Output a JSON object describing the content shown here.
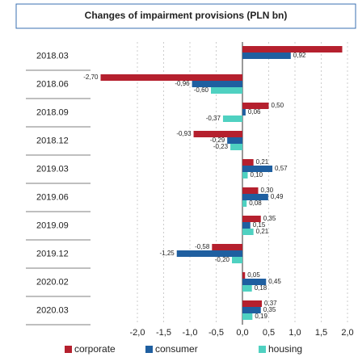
{
  "chart_data": {
    "type": "hbar",
    "title": "Changes of impairment provisions (PLN bn)",
    "categories": [
      "2018.03",
      "2018.06",
      "2018.09",
      "2018.12",
      "2019.03",
      "2019.06",
      "2019.09",
      "2019.12",
      "2020.02",
      "2020.03"
    ],
    "series": [
      {
        "name": "corporate",
        "color": "#b5202e",
        "values": [
          1.9,
          -2.7,
          0.5,
          -0.93,
          0.21,
          0.3,
          0.35,
          -0.58,
          0.05,
          0.37
        ],
        "value_labels": [
          null,
          "-2,70",
          "0,50",
          "-0,93",
          "0,21",
          "0,30",
          "0,35",
          "-0,58",
          "0,05",
          "0,37"
        ]
      },
      {
        "name": "consumer",
        "color": "#1f5fa0",
        "values": [
          0.92,
          -0.96,
          0.06,
          -0.29,
          0.57,
          0.49,
          0.15,
          -1.25,
          0.45,
          0.35
        ],
        "value_labels": [
          "0,92",
          "-0,96",
          "0,06",
          "-0,29",
          "0,57",
          "0,49",
          "0,15",
          "-1,25",
          "0,45",
          "0,35"
        ]
      },
      {
        "name": "housing",
        "color": "#4fd1c1",
        "values": [
          null,
          -0.6,
          -0.37,
          -0.23,
          0.1,
          0.08,
          0.21,
          -0.2,
          0.18,
          0.19
        ],
        "value_labels": [
          null,
          "-0,60",
          "-0,37",
          "-0,23",
          "0,10",
          "0,08",
          "0,21",
          "-0,20",
          "0,18",
          "0,19"
        ]
      }
    ],
    "xlim": [
      -2.8,
      2.2
    ],
    "xticks": [
      {
        "value": -2,
        "label": "-2,0"
      },
      {
        "value": -1.5,
        "label": "-1,5"
      },
      {
        "value": -1,
        "label": "-1,0"
      },
      {
        "value": -0.5,
        "label": "-0,5"
      },
      {
        "value": 0,
        "label": "0,0"
      },
      {
        "value": 0.5,
        "label": "0,5"
      },
      {
        "value": 1,
        "label": "1,0"
      },
      {
        "value": 1.5,
        "label": "1,5"
      },
      {
        "value": 2,
        "label": "2,0"
      }
    ],
    "grid": true
  }
}
